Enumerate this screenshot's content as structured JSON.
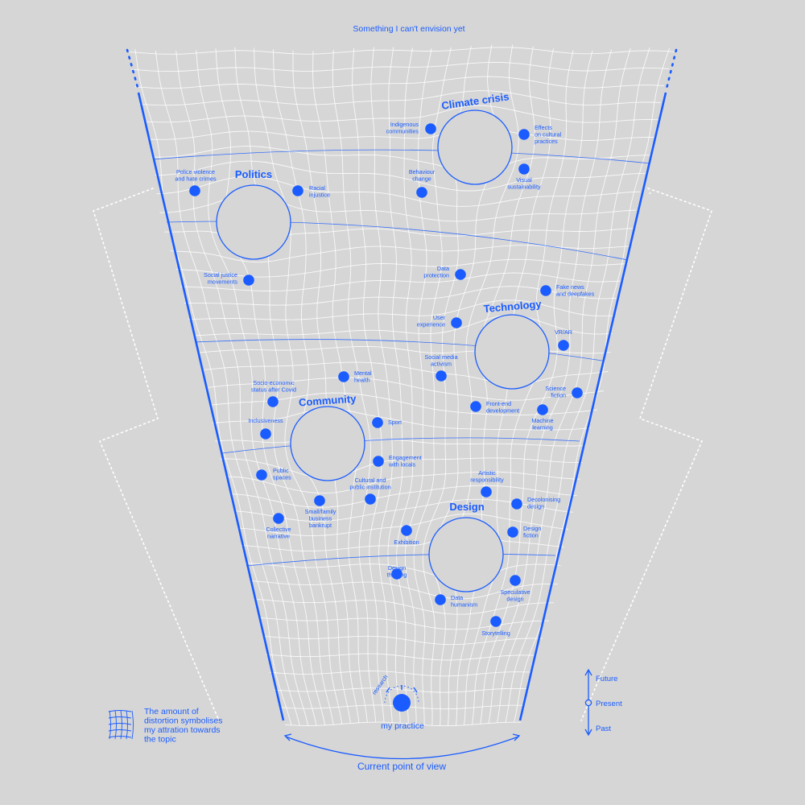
{
  "top_label": "Something I can't envision yet",
  "bottom_label": "Current point of view",
  "practice_label": "my practice",
  "research_label": "research",
  "legend_text": [
    "The amount of",
    "distortion symbolises",
    "my attration towards",
    "the topic"
  ],
  "timeline": {
    "future": "Future",
    "present": "Present",
    "past": "Past"
  },
  "colors": {
    "accent": "#1a5cff",
    "background": "#d6d6d6",
    "grid": "#ffffff"
  },
  "hubs": [
    {
      "id": "climate-crisis",
      "title": "Climate crisis",
      "topics": [
        {
          "id": "indigenous-communities",
          "lines": [
            "Indigenous",
            "communities"
          ]
        },
        {
          "id": "effects-on-cultural-practices",
          "lines": [
            "Effects",
            "on cultural",
            "practices"
          ]
        },
        {
          "id": "behaviour-change",
          "lines": [
            "Behaviour",
            "change"
          ]
        },
        {
          "id": "visual-sustainability",
          "lines": [
            "Visual",
            "sustainability"
          ]
        }
      ]
    },
    {
      "id": "politics",
      "title": "Politics",
      "topics": [
        {
          "id": "police-violence",
          "lines": [
            "Police violence",
            "and hate crimes"
          ]
        },
        {
          "id": "racial-injustice",
          "lines": [
            "Racial",
            "injustice"
          ]
        },
        {
          "id": "social-justice-movements",
          "lines": [
            "Social justice",
            "movements"
          ]
        }
      ]
    },
    {
      "id": "technology",
      "title": "Technology",
      "topics": [
        {
          "id": "data-protection",
          "lines": [
            "Data",
            "protection"
          ]
        },
        {
          "id": "fake-news",
          "lines": [
            "Fake news",
            "and deepfakes"
          ]
        },
        {
          "id": "user-experience",
          "lines": [
            "User",
            "experience"
          ]
        },
        {
          "id": "vr-ar",
          "lines": [
            "VR/AR"
          ]
        },
        {
          "id": "social-media-activism",
          "lines": [
            "Social media",
            "activism"
          ]
        },
        {
          "id": "science-fiction",
          "lines": [
            "Science",
            "fiction"
          ]
        },
        {
          "id": "front-end-development",
          "lines": [
            "Front-end",
            "development"
          ]
        },
        {
          "id": "machine-learning",
          "lines": [
            "Machine",
            "learning"
          ]
        }
      ]
    },
    {
      "id": "community",
      "title": "Community",
      "topics": [
        {
          "id": "mental-health",
          "lines": [
            "Mental",
            "health"
          ]
        },
        {
          "id": "socio-economic-status",
          "lines": [
            "Socio-economic",
            "status after Covid"
          ]
        },
        {
          "id": "inclusiveness",
          "lines": [
            "Inclusiveness"
          ]
        },
        {
          "id": "sport",
          "lines": [
            "Sport"
          ]
        },
        {
          "id": "engagement-with-locals",
          "lines": [
            "Engagement",
            "with locals"
          ]
        },
        {
          "id": "public-spaces",
          "lines": [
            "Public",
            "spaces"
          ]
        },
        {
          "id": "cultural-and-public-institution",
          "lines": [
            "Cultural and",
            "public institution"
          ]
        },
        {
          "id": "small-family-business",
          "lines": [
            "Small/family",
            "business",
            "bankrupt"
          ]
        },
        {
          "id": "collective-narrative",
          "lines": [
            "Collective",
            "narrative"
          ]
        }
      ]
    },
    {
      "id": "design",
      "title": "Design",
      "topics": [
        {
          "id": "artistic-responsibility",
          "lines": [
            "Artistic",
            "responsibility"
          ]
        },
        {
          "id": "decolonising-design",
          "lines": [
            "Decolonising",
            "design"
          ]
        },
        {
          "id": "design-fiction",
          "lines": [
            "Design",
            "fiction"
          ]
        },
        {
          "id": "exhibition",
          "lines": [
            "Exhibition"
          ]
        },
        {
          "id": "design-thinking",
          "lines": [
            "Design",
            "thinking"
          ]
        },
        {
          "id": "speculative-design",
          "lines": [
            "Speculative",
            "design"
          ]
        },
        {
          "id": "data-humanism",
          "lines": [
            "Data",
            "humanism"
          ]
        },
        {
          "id": "storytelling",
          "lines": [
            "Storytelling"
          ]
        }
      ]
    }
  ]
}
